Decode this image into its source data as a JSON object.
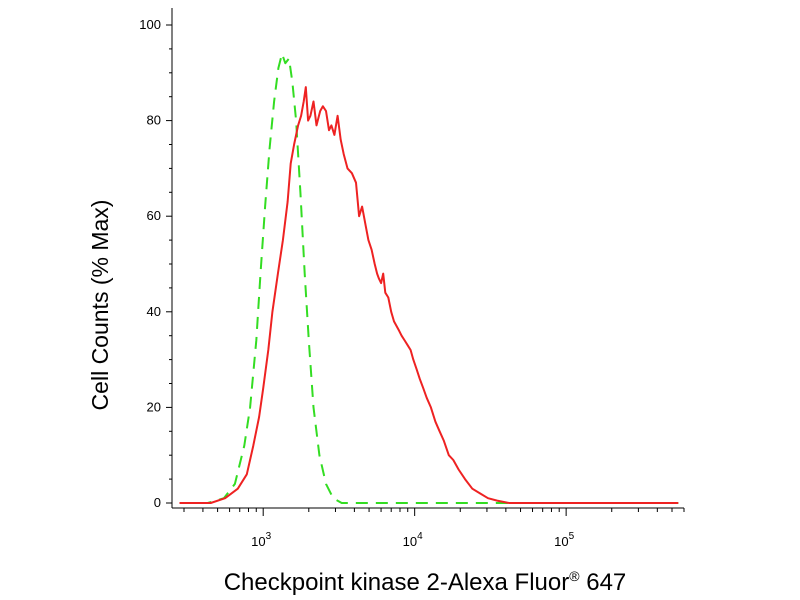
{
  "chart_data": {
    "type": "line",
    "xlabel": "Checkpoint kinase 2-Alexa Fluor",
    "xlabel_superscript": "®",
    "xlabel_suffix": " 647",
    "ylabel": "Cell Counts (% Max)",
    "x_scale": "log",
    "xlim": [
      250,
      600000
    ],
    "ylim": [
      0,
      100
    ],
    "y_ticks": [
      0,
      20,
      40,
      60,
      80,
      100
    ],
    "x_ticks": [
      {
        "value": 1000,
        "base": "10",
        "exp": "3"
      },
      {
        "value": 10000,
        "base": "10",
        "exp": "4"
      },
      {
        "value": 100000,
        "base": "10",
        "exp": "5"
      }
    ],
    "grid": false,
    "legend": "none",
    "series": [
      {
        "color": "#33dd22",
        "style": "dashed",
        "points": [
          [
            280,
            0
          ],
          [
            430,
            0
          ],
          [
            550,
            1
          ],
          [
            650,
            4
          ],
          [
            750,
            12
          ],
          [
            820,
            20
          ],
          [
            900,
            34
          ],
          [
            960,
            48
          ],
          [
            1030,
            62
          ],
          [
            1100,
            74
          ],
          [
            1180,
            84
          ],
          [
            1260,
            91
          ],
          [
            1330,
            94
          ],
          [
            1400,
            92
          ],
          [
            1480,
            93
          ],
          [
            1560,
            88
          ],
          [
            1650,
            80
          ],
          [
            1760,
            65
          ],
          [
            1880,
            48
          ],
          [
            2000,
            34
          ],
          [
            2150,
            20
          ],
          [
            2350,
            10
          ],
          [
            2600,
            4
          ],
          [
            2900,
            1
          ],
          [
            3300,
            0
          ],
          [
            5000,
            0
          ],
          [
            25000,
            0
          ],
          [
            80000,
            0
          ],
          [
            300000,
            0
          ],
          [
            550000,
            0
          ]
        ]
      },
      {
        "color": "#ee2222",
        "style": "solid",
        "points": [
          [
            280,
            0
          ],
          [
            450,
            0
          ],
          [
            560,
            1
          ],
          [
            680,
            3
          ],
          [
            780,
            6
          ],
          [
            860,
            12
          ],
          [
            940,
            18
          ],
          [
            1000,
            24
          ],
          [
            1080,
            32
          ],
          [
            1150,
            40
          ],
          [
            1250,
            48
          ],
          [
            1350,
            55
          ],
          [
            1450,
            63
          ],
          [
            1520,
            71
          ],
          [
            1600,
            75
          ],
          [
            1700,
            79
          ],
          [
            1780,
            81
          ],
          [
            1850,
            84
          ],
          [
            1910,
            87
          ],
          [
            1980,
            80
          ],
          [
            2050,
            81
          ],
          [
            2150,
            84
          ],
          [
            2250,
            79
          ],
          [
            2380,
            82
          ],
          [
            2480,
            83
          ],
          [
            2600,
            82
          ],
          [
            2720,
            78
          ],
          [
            2820,
            79
          ],
          [
            2950,
            77
          ],
          [
            3100,
            81
          ],
          [
            3250,
            76
          ],
          [
            3400,
            73
          ],
          [
            3600,
            70
          ],
          [
            3850,
            69
          ],
          [
            4100,
            67
          ],
          [
            4300,
            60
          ],
          [
            4500,
            62
          ],
          [
            4750,
            58
          ],
          [
            4950,
            55
          ],
          [
            5200,
            53
          ],
          [
            5450,
            50
          ],
          [
            5650,
            48
          ],
          [
            5800,
            47
          ],
          [
            6000,
            46
          ],
          [
            6200,
            48
          ],
          [
            6400,
            44
          ],
          [
            6700,
            43
          ],
          [
            7000,
            40
          ],
          [
            7300,
            38
          ],
          [
            7600,
            37
          ],
          [
            7900,
            36
          ],
          [
            8200,
            35
          ],
          [
            8600,
            34
          ],
          [
            9000,
            33
          ],
          [
            9400,
            32
          ],
          [
            9800,
            30
          ],
          [
            10300,
            28
          ],
          [
            10800,
            26
          ],
          [
            11400,
            24
          ],
          [
            12000,
            22
          ],
          [
            12800,
            20
          ],
          [
            13700,
            17
          ],
          [
            14600,
            15
          ],
          [
            15600,
            13
          ],
          [
            16800,
            10
          ],
          [
            18000,
            9
          ],
          [
            19500,
            7
          ],
          [
            21500,
            5
          ],
          [
            24000,
            3
          ],
          [
            27000,
            2
          ],
          [
            30500,
            1
          ],
          [
            35000,
            0.5
          ],
          [
            42000,
            0
          ],
          [
            60000,
            0
          ],
          [
            120000,
            0
          ],
          [
            300000,
            0
          ],
          [
            550000,
            0
          ]
        ]
      }
    ]
  }
}
